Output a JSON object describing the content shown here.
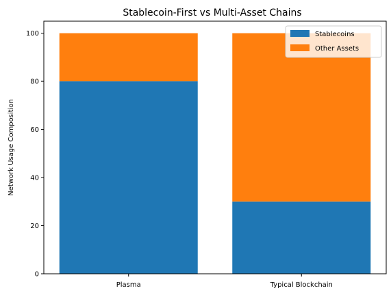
{
  "chart_data": {
    "type": "bar",
    "stacked": true,
    "title": "Stablecoin-First vs Multi-Asset Chains",
    "xlabel": "",
    "ylabel": "Network Usage Composition",
    "categories": [
      "Plasma",
      "Typical Blockchain"
    ],
    "series": [
      {
        "name": "Stablecoins",
        "values": [
          80,
          30
        ],
        "color": "#1f77b4"
      },
      {
        "name": "Other Assets",
        "values": [
          20,
          70
        ],
        "color": "#ff7f0e"
      }
    ],
    "ylim": [
      0,
      105
    ],
    "yticks": [
      0,
      20,
      40,
      60,
      80,
      100
    ],
    "grid": false,
    "legend": "top-right"
  }
}
